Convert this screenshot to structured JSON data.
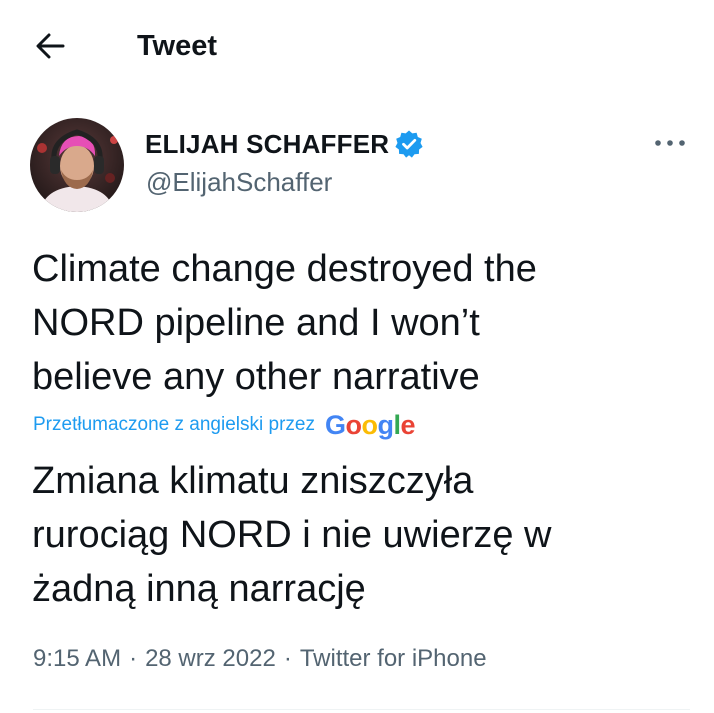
{
  "header": {
    "title": "Tweet",
    "back_icon": "arrow-left-icon"
  },
  "author": {
    "display_name": "ELIJAH SCHAFFER",
    "handle": "@ElijahSchaffer",
    "verified": true,
    "verified_color": "#1d9bf0",
    "more_icon": "ellipsis-icon"
  },
  "tweet": {
    "text_lines": [
      "Climate change destroyed the",
      "NORD pipeline and I won’t",
      "believe any other narrative"
    ],
    "translated_by_label": "Przetłumaczone z angielski przez",
    "translator_logo": [
      "G",
      "o",
      "o",
      "g",
      "l",
      "e"
    ],
    "translated_lines": [
      "Zmiana klimatu zniszczyła",
      "rurociąg NORD i nie uwierzę w",
      "żadną inną narrację"
    ]
  },
  "meta": {
    "time": "9:15 AM",
    "separator": "·",
    "date": "28 wrz 2022",
    "source": "Twitter for iPhone"
  },
  "colors": {
    "text": "#0f1419",
    "secondary": "#536471",
    "link": "#1d9bf0",
    "google": [
      "#4285F4",
      "#EA4335",
      "#FBBC05",
      "#4285F4",
      "#34A853",
      "#EA4335"
    ]
  }
}
